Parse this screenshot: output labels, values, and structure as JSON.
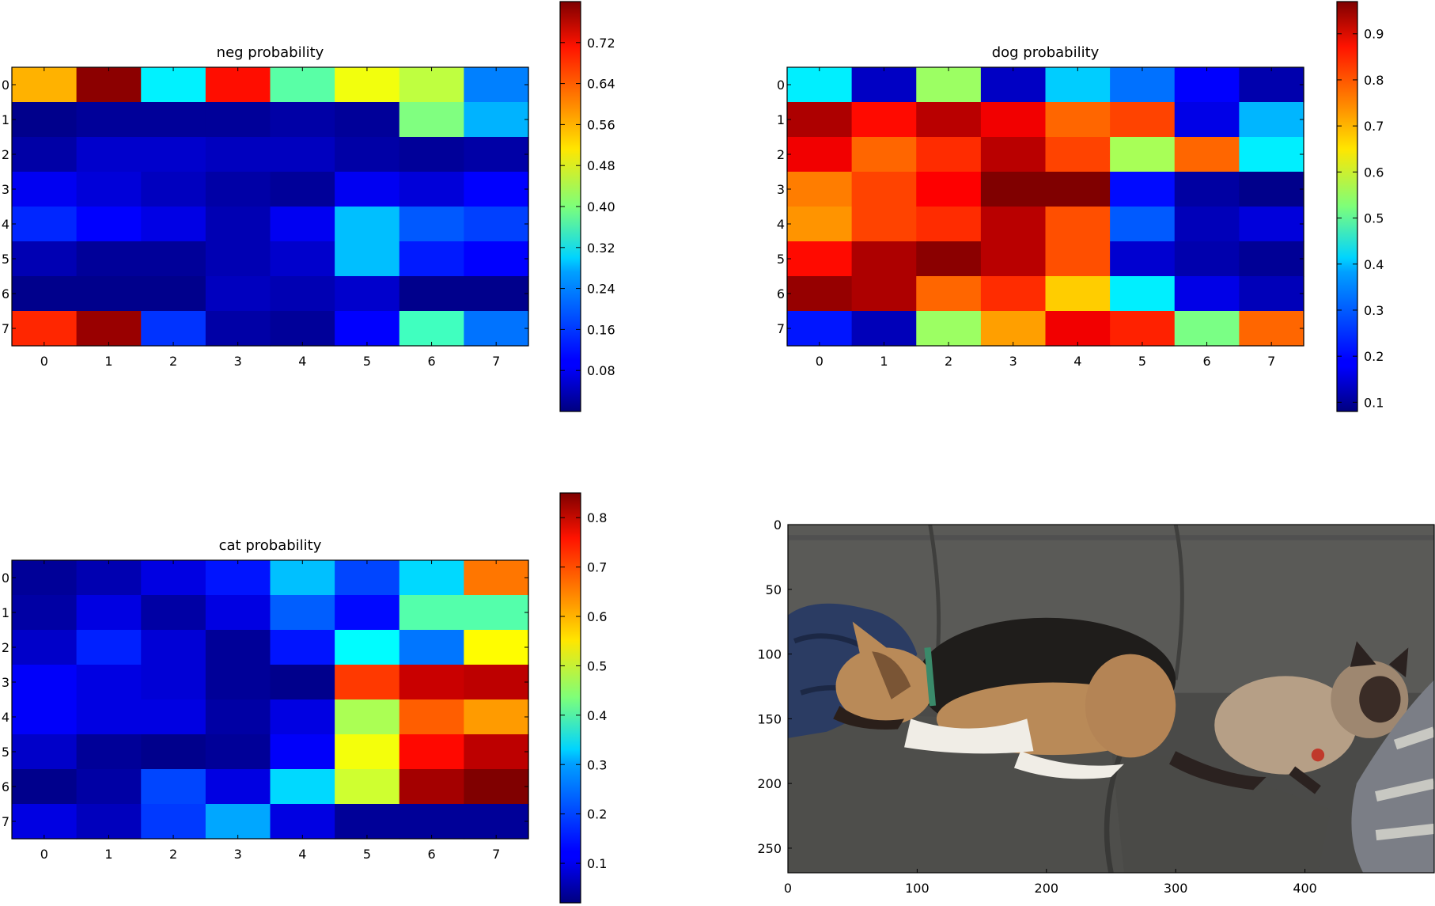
{
  "chart_data": [
    {
      "type": "heatmap",
      "title": "neg probability",
      "x": [
        0,
        1,
        2,
        3,
        4,
        5,
        6,
        7
      ],
      "y": [
        0,
        1,
        2,
        3,
        4,
        5,
        6,
        7
      ],
      "values": [
        [
          0.56,
          0.79,
          0.29,
          0.69,
          0.37,
          0.49,
          0.45,
          0.2
        ],
        [
          0.01,
          0.02,
          0.02,
          0.02,
          0.03,
          0.02,
          0.4,
          0.24
        ],
        [
          0.03,
          0.06,
          0.06,
          0.05,
          0.05,
          0.03,
          0.02,
          0.03
        ],
        [
          0.09,
          0.07,
          0.05,
          0.03,
          0.02,
          0.09,
          0.07,
          0.1
        ],
        [
          0.13,
          0.1,
          0.08,
          0.04,
          0.09,
          0.25,
          0.17,
          0.15
        ],
        [
          0.04,
          0.02,
          0.02,
          0.04,
          0.06,
          0.25,
          0.12,
          0.1
        ],
        [
          0.01,
          0.01,
          0.01,
          0.05,
          0.04,
          0.06,
          0.01,
          0.01
        ],
        [
          0.67,
          0.78,
          0.14,
          0.03,
          0.02,
          0.1,
          0.35,
          0.19
        ]
      ],
      "colorbar": {
        "ticks": [
          0.08,
          0.16,
          0.24,
          0.32,
          0.4,
          0.48,
          0.56,
          0.64,
          0.72
        ],
        "vmin": 0.0,
        "vmax": 0.8
      },
      "colormap": "jet"
    },
    {
      "type": "heatmap",
      "title": "dog probability",
      "x": [
        0,
        1,
        2,
        3,
        4,
        5,
        6,
        7
      ],
      "y": [
        0,
        1,
        2,
        3,
        4,
        5,
        6,
        7
      ],
      "values": [
        [
          0.4,
          0.14,
          0.55,
          0.14,
          0.37,
          0.29,
          0.19,
          0.12
        ],
        [
          0.93,
          0.85,
          0.92,
          0.87,
          0.77,
          0.8,
          0.17,
          0.35
        ],
        [
          0.87,
          0.77,
          0.82,
          0.92,
          0.8,
          0.56,
          0.77,
          0.4
        ],
        [
          0.75,
          0.8,
          0.86,
          0.97,
          0.97,
          0.2,
          0.11,
          0.09
        ],
        [
          0.73,
          0.8,
          0.82,
          0.92,
          0.79,
          0.27,
          0.13,
          0.16
        ],
        [
          0.85,
          0.93,
          0.96,
          0.92,
          0.79,
          0.15,
          0.12,
          0.1
        ],
        [
          0.95,
          0.93,
          0.77,
          0.82,
          0.68,
          0.4,
          0.17,
          0.13
        ],
        [
          0.21,
          0.13,
          0.55,
          0.72,
          0.87,
          0.83,
          0.52,
          0.77
        ]
      ],
      "colorbar": {
        "ticks": [
          0.1,
          0.2,
          0.3,
          0.4,
          0.5,
          0.6,
          0.7,
          0.8,
          0.9
        ],
        "vmin": 0.08,
        "vmax": 0.97
      },
      "colormap": "jet"
    },
    {
      "type": "heatmap",
      "title": "cat probability",
      "x": [
        0,
        1,
        2,
        3,
        4,
        5,
        6,
        7
      ],
      "y": [
        0,
        1,
        2,
        3,
        4,
        5,
        6,
        7
      ],
      "values": [
        [
          0.04,
          0.06,
          0.1,
          0.14,
          0.28,
          0.18,
          0.3,
          0.65
        ],
        [
          0.05,
          0.1,
          0.05,
          0.1,
          0.2,
          0.13,
          0.4,
          0.4
        ],
        [
          0.08,
          0.15,
          0.09,
          0.04,
          0.14,
          0.33,
          0.22,
          0.54
        ],
        [
          0.12,
          0.1,
          0.09,
          0.04,
          0.03,
          0.7,
          0.79,
          0.8
        ],
        [
          0.12,
          0.1,
          0.1,
          0.05,
          0.1,
          0.47,
          0.67,
          0.62
        ],
        [
          0.08,
          0.04,
          0.03,
          0.04,
          0.12,
          0.53,
          0.74,
          0.8
        ],
        [
          0.03,
          0.05,
          0.18,
          0.1,
          0.3,
          0.5,
          0.82,
          0.85
        ],
        [
          0.1,
          0.07,
          0.17,
          0.26,
          0.1,
          0.04,
          0.04,
          0.04
        ]
      ],
      "colorbar": {
        "ticks": [
          0.1,
          0.2,
          0.3,
          0.4,
          0.5,
          0.6,
          0.7,
          0.8
        ],
        "vmin": 0.02,
        "vmax": 0.85
      },
      "colormap": "jet"
    },
    {
      "type": "image",
      "title": "",
      "subject": "dog and cat sleeping on a gray couch",
      "x_ticks": [
        0,
        100,
        200,
        300,
        400
      ],
      "y_ticks": [
        0,
        50,
        100,
        150,
        200,
        250
      ],
      "xlim": [
        0,
        500
      ],
      "ylim": [
        0,
        269
      ],
      "colors": {
        "couch": "#555553",
        "dog_black": "#1f1d1b",
        "dog_tan": "#b98a58",
        "cat_body": "#b69f86",
        "cat_dark": "#2b2220",
        "blanket": "#2b3c63"
      }
    }
  ]
}
